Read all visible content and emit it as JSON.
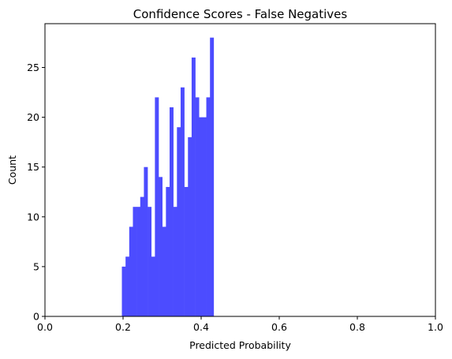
{
  "chart_data": {
    "type": "bar",
    "title": "Confidence Scores - False Negatives",
    "xlabel": "Predicted Probability",
    "ylabel": "Count",
    "xlim": [
      0.0,
      1.0
    ],
    "ylim": [
      0,
      29.4
    ],
    "xticks": [
      "0.0",
      "0.2",
      "0.4",
      "0.6",
      "0.8",
      "1.0"
    ],
    "yticks": [
      "0",
      "5",
      "10",
      "15",
      "20",
      "25"
    ],
    "grid": false,
    "bar_color": "#4c4cff",
    "bin_start": 0.197,
    "bin_width": 0.0094,
    "values": [
      5,
      6,
      9,
      11,
      11,
      12,
      15,
      11,
      6,
      22,
      14,
      9,
      13,
      21,
      11,
      19,
      23,
      13,
      18,
      26,
      22,
      20,
      20,
      22,
      28
    ]
  }
}
